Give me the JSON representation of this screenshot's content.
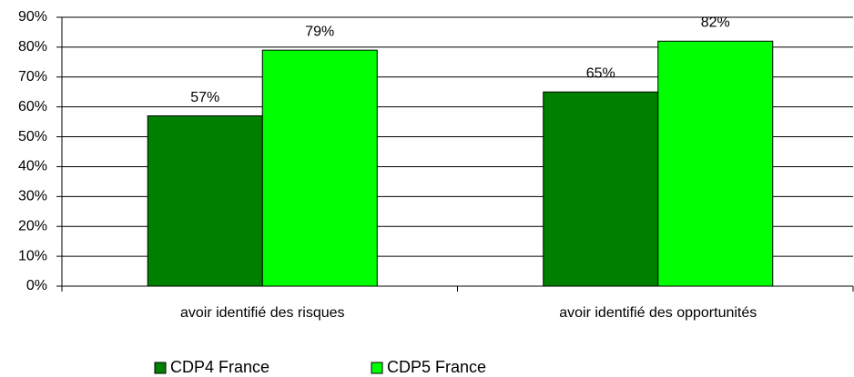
{
  "chart_data": {
    "type": "bar",
    "categories": [
      "avoir identifié des risques",
      "avoir identifié des opportunités"
    ],
    "series": [
      {
        "name": "CDP4 France",
        "color": "#008000",
        "values": [
          57,
          65
        ],
        "value_labels": [
          "57%",
          "65%"
        ]
      },
      {
        "name": "CDP5 France",
        "color": "#00ff00",
        "values": [
          79,
          82
        ],
        "value_labels": [
          "79%",
          "82%"
        ]
      }
    ],
    "ylim": [
      0,
      90
    ],
    "yticks": [
      {
        "value": 0,
        "label": "0%"
      },
      {
        "value": 10,
        "label": "10%"
      },
      {
        "value": 20,
        "label": "20%"
      },
      {
        "value": 30,
        "label": "30%"
      },
      {
        "value": 40,
        "label": "40%"
      },
      {
        "value": 50,
        "label": "50%"
      },
      {
        "value": 60,
        "label": "60%"
      },
      {
        "value": 70,
        "label": "70%"
      },
      {
        "value": 80,
        "label": "80%"
      },
      {
        "value": 90,
        "label": "90%"
      }
    ],
    "grid": true,
    "legend": "bottom"
  }
}
